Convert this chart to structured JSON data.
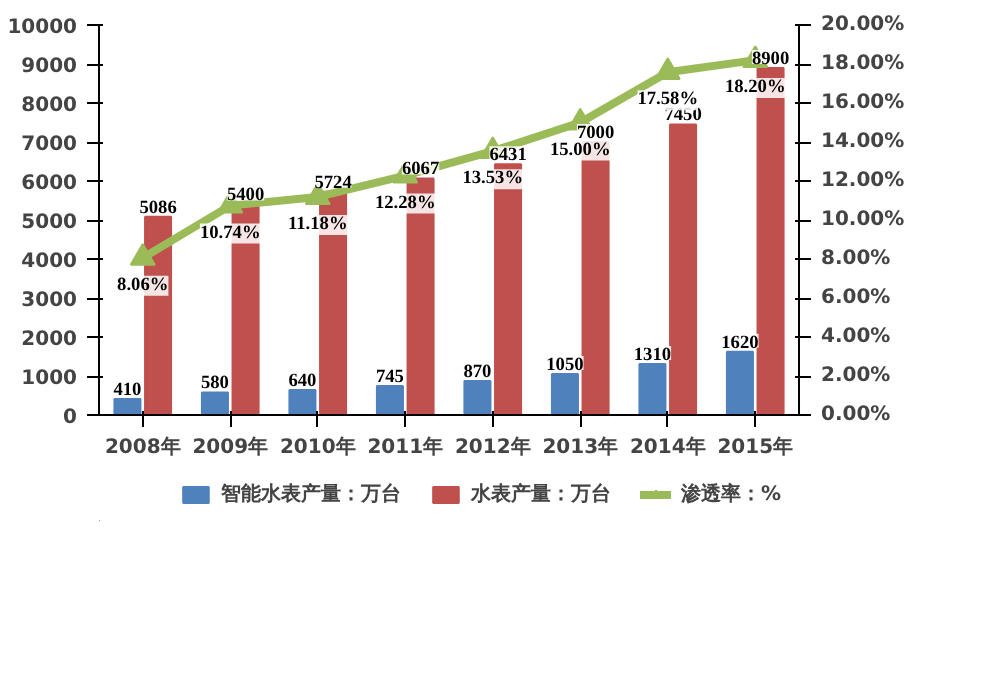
{
  "chart_data": {
    "type": "bar",
    "categories": [
      "2008年",
      "2009年",
      "2010年",
      "2011年",
      "2012年",
      "2013年",
      "2014年",
      "2015年"
    ],
    "series": [
      {
        "name": "智能水表产量：万台",
        "color": "#4f81bd",
        "values": [
          410,
          580,
          640,
          745,
          870,
          1050,
          1310,
          1620
        ],
        "value_labels": [
          "410",
          "580",
          "640",
          "745",
          "870",
          "1050",
          "1310",
          "1620"
        ]
      },
      {
        "name": "水表产量：万台",
        "color": "#c0504d",
        "values": [
          5086,
          5400,
          5724,
          6067,
          6431,
          7000,
          7450,
          8900
        ],
        "value_labels": [
          "5086",
          "5400",
          "5724",
          "6067",
          "6431",
          "7000",
          "7450",
          "8900"
        ]
      },
      {
        "name": "渗透率：%",
        "type": "line",
        "axis": "y2",
        "color": "#9bbb59",
        "marker": "triangle",
        "values": [
          8.06,
          10.74,
          11.18,
          12.28,
          13.53,
          15.0,
          17.58,
          18.2
        ],
        "value_labels": [
          "8.06%",
          "10.74%",
          "11.18%",
          "12.28%",
          "13.53%",
          "15.00%",
          "17.58%",
          "18.20%"
        ]
      }
    ],
    "ylim": [
      0,
      10000
    ],
    "yticks": [
      0,
      1000,
      2000,
      3000,
      4000,
      5000,
      6000,
      7000,
      8000,
      9000,
      10000
    ],
    "y2lim": [
      0,
      20
    ],
    "y2ticks": [
      {
        "value": 0,
        "label": "0.00%"
      },
      {
        "value": 2,
        "label": "2.00%"
      },
      {
        "value": 4,
        "label": "4.00%"
      },
      {
        "value": 6,
        "label": "6.00%"
      },
      {
        "value": 8,
        "label": "8.00%"
      },
      {
        "value": 10,
        "label": "10.00%"
      },
      {
        "value": 12,
        "label": "12.00%"
      },
      {
        "value": 14,
        "label": "14.00%"
      },
      {
        "value": 16,
        "label": "16.00%"
      },
      {
        "value": 18,
        "label": "18.00%"
      },
      {
        "value": 20,
        "label": "20.00%"
      }
    ],
    "grid": false,
    "legend": "bottom"
  }
}
